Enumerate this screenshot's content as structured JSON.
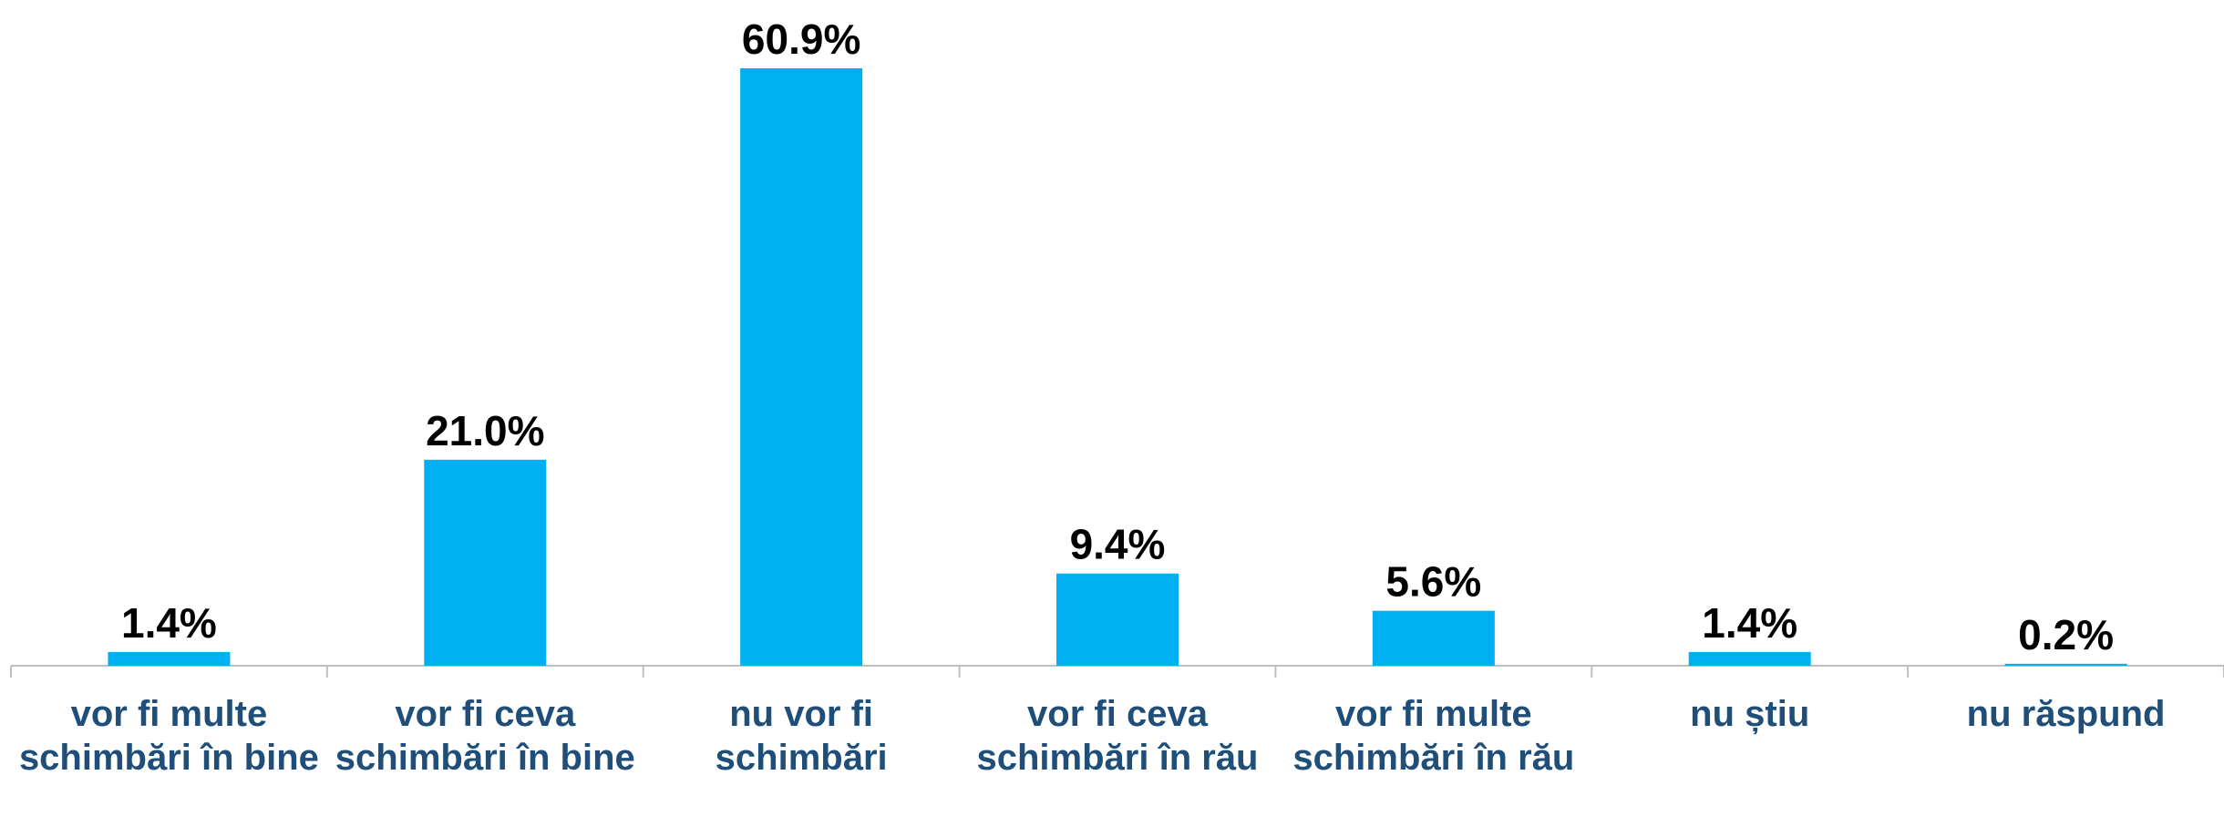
{
  "chart_data": {
    "type": "bar",
    "categories": [
      "vor fi multe schimbări în bine",
      "vor fi ceva schimbări în bine",
      "nu vor fi schimbări",
      "vor fi ceva schimbări în rău",
      "vor fi multe schimbări în rău",
      "nu știu",
      "nu răspund"
    ],
    "values": [
      1.4,
      21.0,
      60.9,
      9.4,
      5.6,
      1.4,
      0.2
    ],
    "value_labels": [
      "1.4%",
      "21.0%",
      "60.9%",
      "9.4%",
      "5.6%",
      "1.4%",
      "0.2%"
    ],
    "color": "#00b0f0"
  }
}
